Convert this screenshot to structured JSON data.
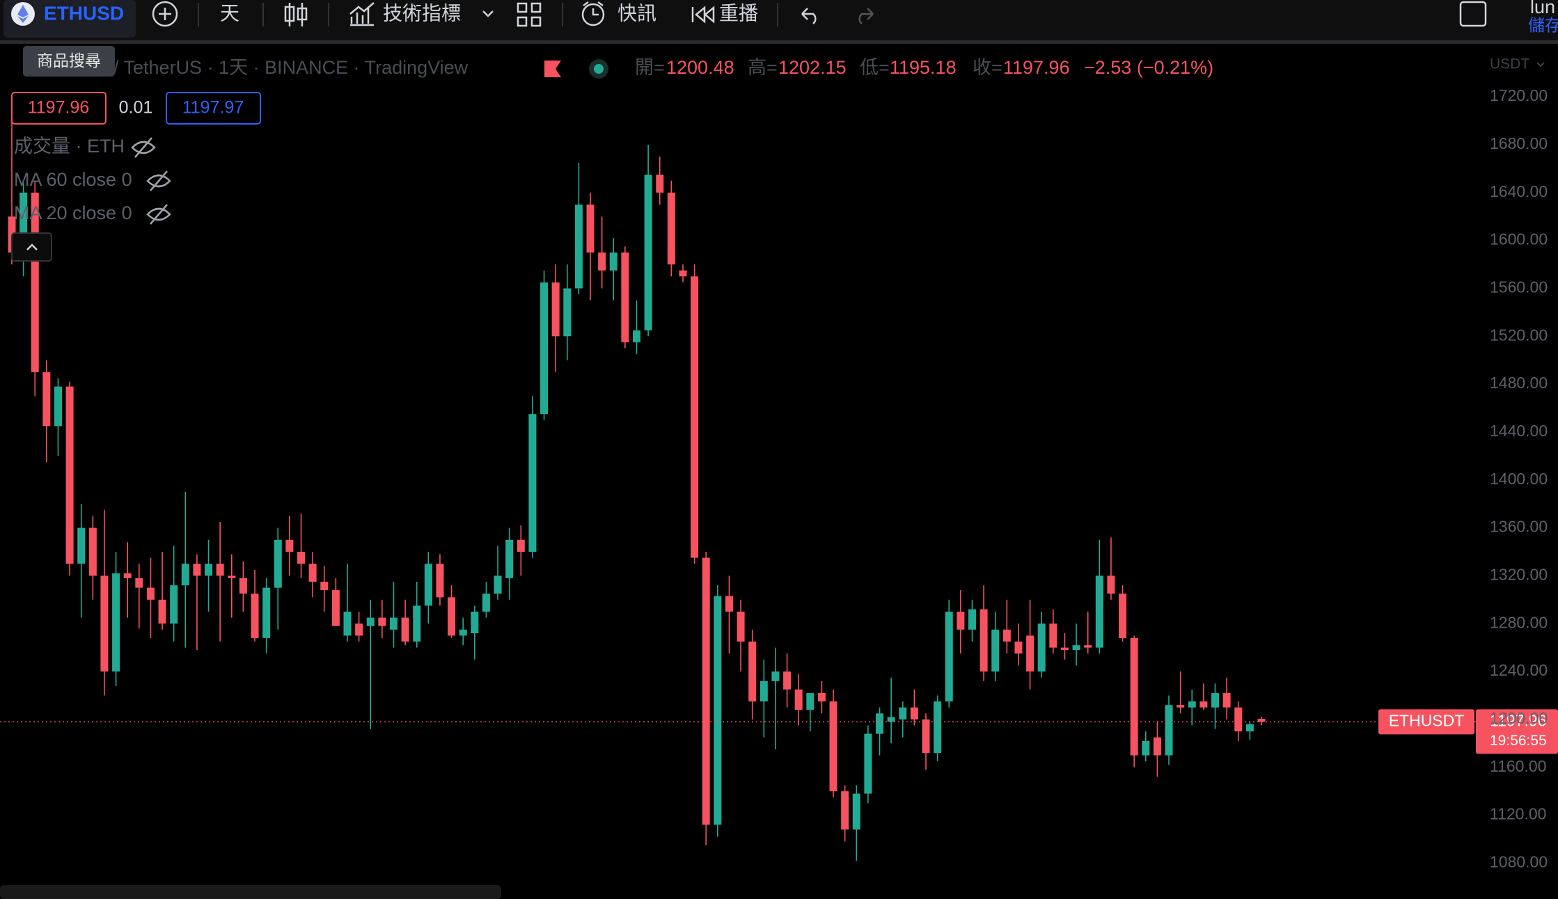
{
  "toolbar": {
    "symbol": "ETHUSD",
    "interval": "天",
    "indicators": "技術指標",
    "alerts": "快訊",
    "replay": "重播",
    "user": "lun",
    "save": "儲存"
  },
  "tooltip": "商品搜尋",
  "legend": {
    "title": "/ TetherUS · 1天 · BINANCE · TradingView",
    "open_label": "開=",
    "high_label": "高=",
    "low_label": "低=",
    "close_label": "收=",
    "change": "−2.53 (−0.21%)"
  },
  "quote": {
    "spread": "0.01",
    "ask": "1197.97"
  },
  "indicators": [
    "成交量 · ETH",
    "MA 60 close 0",
    "MA 20 close 0"
  ],
  "price_axis": {
    "currency": "USDT",
    "symbol_tag": "ETHUSDT",
    "countdown": "19:56:55"
  },
  "chart_data": {
    "type": "candlestick",
    "up_color": "#22ab94",
    "down_color": "#f7525f",
    "grid": false,
    "ylim": [
      1050,
      1766
    ],
    "yticks": [
      {
        "value": 1080,
        "label": "1080.00"
      },
      {
        "value": 1120,
        "label": "1120.00"
      },
      {
        "value": 1160,
        "label": "1160.00"
      },
      {
        "value": 1200,
        "label": "1200.00"
      },
      {
        "value": 1240,
        "label": "1240.00"
      },
      {
        "value": 1280,
        "label": "1280.00"
      },
      {
        "value": 1320,
        "label": "1320.00"
      },
      {
        "value": 1360,
        "label": "1360.00"
      },
      {
        "value": 1400,
        "label": "1400.00"
      },
      {
        "value": 1440,
        "label": "1440.00"
      },
      {
        "value": 1480,
        "label": "1480.00"
      },
      {
        "value": 1520,
        "label": "1520.00"
      },
      {
        "value": 1560,
        "label": "1560.00"
      },
      {
        "value": 1600,
        "label": "1600.00"
      },
      {
        "value": 1640,
        "label": "1640.00"
      },
      {
        "value": 1680,
        "label": "1680.00"
      },
      {
        "value": 1720,
        "label": "1720.00"
      }
    ],
    "open": [
      1620,
      1590,
      1640,
      1490,
      1445,
      1478,
      1330,
      1360,
      1320,
      1240,
      1322,
      1318,
      1310,
      1300,
      1280,
      1312,
      1330,
      1320,
      1330,
      1320,
      1318,
      1305,
      1268,
      1310,
      1350,
      1340,
      1330,
      1315,
      1308,
      1270,
      1280,
      1278,
      1285,
      1275,
      1285,
      1265,
      1295,
      1330,
      1302,
      1270,
      1272,
      1290,
      1305,
      1318,
      1350,
      1340,
      1455,
      1565,
      1520,
      1560,
      1630,
      1590,
      1575,
      1590,
      1515,
      1525,
      1655,
      1640,
      1575,
      1570,
      1335,
      1112,
      1303,
      1290,
      1265,
      1215,
      1232,
      1240,
      1225,
      1208,
      1222,
      1215,
      1140,
      1108,
      1138,
      1188,
      1198,
      1200,
      1210,
      1200,
      1172,
      1215,
      1290,
      1275,
      1292,
      1240,
      1275,
      1265,
      1270,
      1240,
      1280,
      1260,
      1258,
      1262,
      1260,
      1320,
      1305,
      1268,
      1170,
      1185,
      1170,
      1212,
      1210,
      1215,
      1210,
      1222,
      1210,
      1190,
      1200.48
    ],
    "high": [
      1700,
      1650,
      1650,
      1500,
      1485,
      1482,
      1380,
      1370,
      1375,
      1340,
      1348,
      1330,
      1335,
      1340,
      1345,
      1390,
      1338,
      1350,
      1365,
      1338,
      1332,
      1325,
      1318,
      1360,
      1370,
      1372,
      1340,
      1328,
      1318,
      1330,
      1290,
      1300,
      1300,
      1315,
      1300,
      1315,
      1340,
      1338,
      1312,
      1285,
      1295,
      1315,
      1345,
      1360,
      1362,
      1470,
      1575,
      1580,
      1580,
      1665,
      1640,
      1620,
      1602,
      1595,
      1550,
      1680,
      1670,
      1650,
      1580,
      1580,
      1340,
      1312,
      1320,
      1300,
      1275,
      1250,
      1260,
      1255,
      1238,
      1220,
      1232,
      1225,
      1145,
      1145,
      1195,
      1210,
      1235,
      1215,
      1225,
      1205,
      1220,
      1300,
      1308,
      1300,
      1312,
      1290,
      1300,
      1280,
      1300,
      1290,
      1292,
      1272,
      1280,
      1290,
      1350,
      1352,
      1312,
      1270,
      1190,
      1198,
      1220,
      1240,
      1225,
      1230,
      1230,
      1235,
      1215,
      1198,
      1202.15
    ],
    "low": [
      1580,
      1570,
      1470,
      1415,
      1420,
      1320,
      1285,
      1300,
      1220,
      1228,
      1285,
      1276,
      1268,
      1275,
      1265,
      1260,
      1258,
      1290,
      1265,
      1285,
      1290,
      1265,
      1255,
      1275,
      1320,
      1318,
      1302,
      1290,
      1278,
      1265,
      1265,
      1192,
      1268,
      1260,
      1262,
      1260,
      1280,
      1295,
      1268,
      1262,
      1250,
      1285,
      1300,
      1300,
      1320,
      1335,
      1450,
      1490,
      1500,
      1555,
      1550,
      1560,
      1550,
      1510,
      1505,
      1520,
      1630,
      1570,
      1565,
      1330,
      1095,
      1102,
      1255,
      1240,
      1200,
      1185,
      1175,
      1210,
      1195,
      1190,
      1205,
      1135,
      1098,
      1082,
      1130,
      1170,
      1180,
      1185,
      1195,
      1158,
      1165,
      1210,
      1255,
      1265,
      1232,
      1232,
      1255,
      1245,
      1225,
      1235,
      1255,
      1250,
      1245,
      1255,
      1255,
      1300,
      1265,
      1160,
      1165,
      1152,
      1162,
      1205,
      1195,
      1208,
      1192,
      1200,
      1182,
      1183,
      1195.18
    ],
    "close": [
      1590,
      1640,
      1490,
      1445,
      1478,
      1330,
      1360,
      1320,
      1240,
      1322,
      1318,
      1310,
      1300,
      1280,
      1312,
      1330,
      1320,
      1330,
      1320,
      1318,
      1305,
      1268,
      1310,
      1350,
      1340,
      1330,
      1315,
      1308,
      1278,
      1290,
      1270,
      1285,
      1278,
      1285,
      1265,
      1295,
      1330,
      1302,
      1270,
      1275,
      1290,
      1305,
      1320,
      1350,
      1340,
      1455,
      1565,
      1520,
      1560,
      1630,
      1590,
      1575,
      1590,
      1515,
      1525,
      1655,
      1640,
      1580,
      1570,
      1335,
      1112,
      1303,
      1290,
      1265,
      1215,
      1232,
      1240,
      1225,
      1208,
      1222,
      1215,
      1140,
      1108,
      1138,
      1188,
      1205,
      1202,
      1210,
      1200,
      1172,
      1215,
      1290,
      1275,
      1292,
      1240,
      1275,
      1265,
      1255,
      1240,
      1280,
      1260,
      1258,
      1262,
      1260,
      1320,
      1305,
      1268,
      1170,
      1182,
      1170,
      1212,
      1210,
      1215,
      1210,
      1222,
      1210,
      1190,
      1196,
      1197.96
    ]
  }
}
